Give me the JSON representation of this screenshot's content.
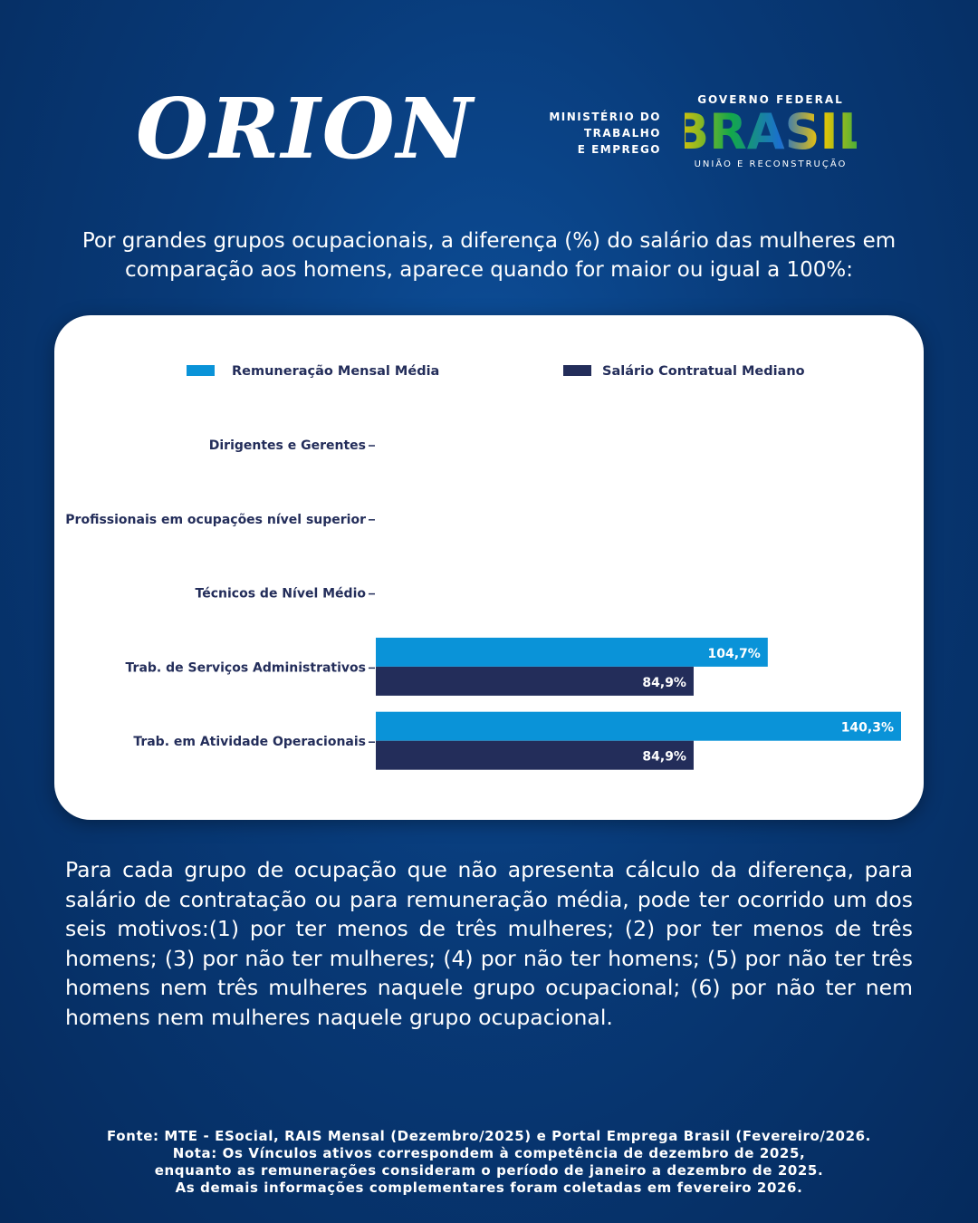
{
  "header": {
    "logo": "ORION",
    "ministry": [
      "MINISTÉRIO DO",
      "TRABALHO",
      "E EMPREGO"
    ],
    "government": "GOVERNO FEDERAL",
    "brand": "BRASIL",
    "slogan": "UNIÃO E RECONSTRUÇÃO"
  },
  "chart_data": {
    "type": "bar",
    "orientation": "horizontal",
    "title": "Por grandes grupos ocupacionais, a diferença (%) do salário das mulheres em comparação aos homens, aparece quando for maior ou igual a 100%:",
    "categories": [
      "Dirigentes e Gerentes",
      "Profissionais em ocupações nível superior",
      "Técnicos de Nível Médio",
      "Trab. de Serviços Administrativos",
      "Trab. em Atividade Operacionais"
    ],
    "series": [
      {
        "name": "Remuneração Mensal Média",
        "color": "#0a93d8",
        "values": [
          null,
          null,
          null,
          104.7,
          140.3
        ],
        "value_labels": [
          null,
          null,
          null,
          "104,7%",
          "140,3%"
        ]
      },
      {
        "name": "Salário Contratual Mediano",
        "color": "#232d5a",
        "values": [
          null,
          null,
          null,
          84.9,
          84.9
        ],
        "value_labels": [
          null,
          null,
          null,
          "84,9%",
          "84,9%"
        ]
      }
    ]
  },
  "note": "Para cada grupo de ocupação que não apresenta cálculo da diferença, para salário de contratação ou para remuneração média, pode ter ocorrido um dos seis motivos:(1) por ter menos de três mulheres; (2) por ter menos de três homens; (3) por não ter mulheres; (4) por não ter homens; (5) por não ter três homens nem três mulheres naquele grupo ocupacional; (6) por não ter nem homens nem mulheres naquele grupo ocupacional.",
  "footer": [
    "Fonte: MTE - ESocial, RAIS Mensal (Dezembro/2025) e Portal Emprega Brasil (Fevereiro/2026.",
    "Nota: Os Vínculos ativos correspondem à competência de dezembro de 2025,",
    "enquanto as remunerações consideram o período de janeiro a dezembro de 2025.",
    "As demais informações complementares foram coletadas em fevereiro 2026."
  ]
}
